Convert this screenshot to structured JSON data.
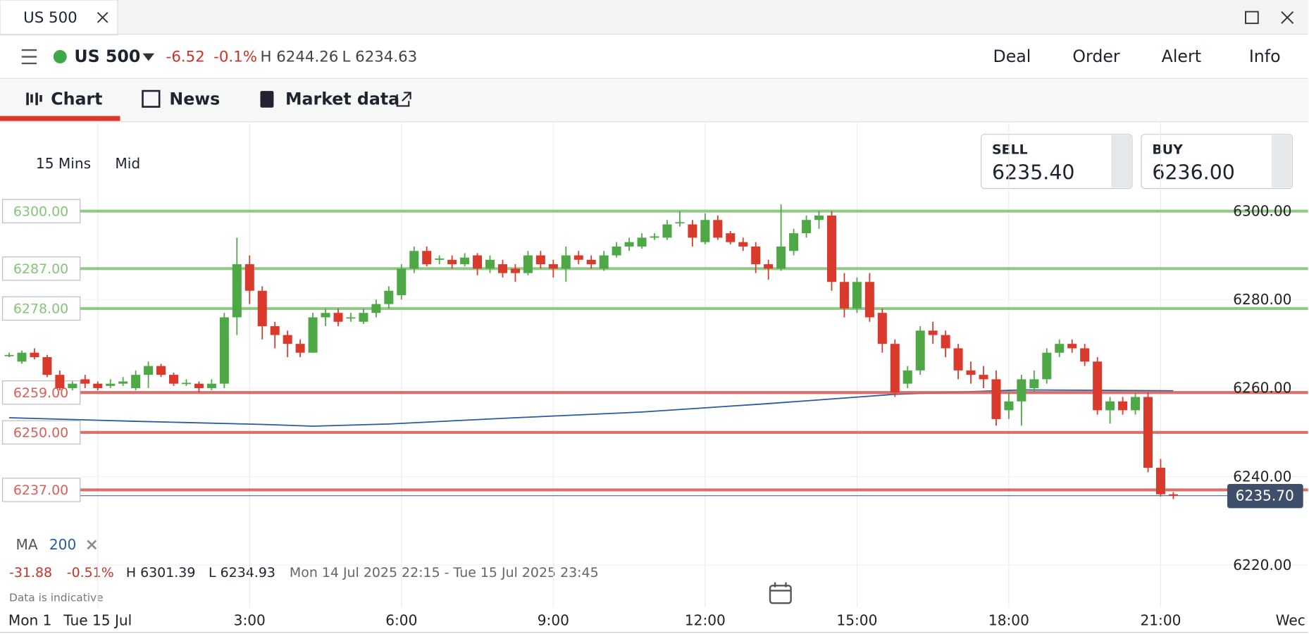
{
  "window": {
    "tab_title": "US 500"
  },
  "toolbar": {
    "instrument": "US 500",
    "change": "-6.52",
    "change_pct": "-0.1%",
    "high": "H 6244.26",
    "low": "L 6234.63",
    "menu": [
      "Deal",
      "Order",
      "Alert",
      "Info"
    ]
  },
  "tabs": [
    "Chart",
    "News",
    "Market data"
  ],
  "chart_data": {
    "type": "candlestick",
    "interval": "15 Mins",
    "price_type": "Mid",
    "sell": {
      "label": "SELL",
      "price": "6235.40"
    },
    "buy": {
      "label": "BUY",
      "price": "6236.00"
    },
    "up_color": "#4ea845",
    "down_color": "#d93a2b",
    "open": [
      6267.5,
      6266,
      6268,
      6267,
      6263,
      6260,
      6262,
      6261,
      6260.5,
      6261,
      6260,
      6263,
      6265,
      6263,
      6261,
      6261,
      6260,
      6261,
      6276,
      6288,
      6282,
      6274,
      6272,
      6270,
      6268,
      6276,
      6277,
      6275.8,
      6275,
      6277,
      6279,
      6281,
      6287,
      6291,
      6289,
      6289,
      6288,
      6290,
      6287,
      6288,
      6287,
      6286,
      6290,
      6288,
      6287,
      6290,
      6289,
      6287,
      6290,
      6292,
      6292,
      6294,
      6294,
      6297.3,
      6297,
      6293,
      6298,
      6295,
      6293,
      6292,
      6288,
      6287,
      6291,
      6295,
      6298,
      6299,
      6284,
      6278,
      6284,
      6277,
      6270,
      6261,
      6264,
      6273,
      6272,
      6269,
      6264,
      6263,
      6262,
      6255,
      6257,
      6260,
      6262,
      6268,
      6270,
      6269,
      6266,
      6255,
      6257,
      6255,
      6258,
      6242,
      6236
    ],
    "high": [
      6268,
      6268.5,
      6269,
      6267.5,
      6264,
      6261.5,
      6263,
      6261.5,
      6262,
      6262.5,
      6264,
      6266,
      6265.5,
      6263.5,
      6262,
      6261.5,
      6262,
      6277,
      6294,
      6290,
      6283,
      6275,
      6273,
      6271,
      6277,
      6278,
      6278,
      6277,
      6278,
      6280,
      6283,
      6288,
      6292,
      6292,
      6290,
      6290,
      6290.5,
      6290.5,
      6290,
      6289,
      6288,
      6291,
      6291,
      6289,
      6292,
      6291,
      6290,
      6291,
      6293,
      6294,
      6295,
      6295,
      6298,
      6300,
      6298,
      6299.5,
      6299,
      6295.5,
      6294,
      6293,
      6289,
      6301.5,
      6296,
      6299,
      6300,
      6300,
      6286,
      6285,
      6286,
      6278,
      6271,
      6265,
      6274,
      6275,
      6273,
      6270,
      6266,
      6265,
      6264,
      6259,
      6263,
      6264,
      6269,
      6271,
      6271,
      6270,
      6267,
      6258,
      6258,
      6259,
      6259,
      6244,
      6236.5
    ],
    "low": [
      6267,
      6265.5,
      6266.5,
      6262.5,
      6259.5,
      6259.5,
      6260,
      6259.5,
      6260,
      6260.5,
      6259.5,
      6260,
      6262.5,
      6260.5,
      6260.5,
      6259,
      6259.5,
      6260,
      6272,
      6279,
      6271,
      6269,
      6267,
      6267,
      6268,
      6274,
      6274,
      6275,
      6274.5,
      6276,
      6278,
      6280,
      6286,
      6287.5,
      6288,
      6287,
      6287.5,
      6285.5,
      6286,
      6285,
      6284,
      6285.5,
      6287,
      6285,
      6284,
      6288,
      6287,
      6286.5,
      6289.5,
      6291,
      6291.5,
      6293.5,
      6293.5,
      6296.5,
      6292,
      6292.5,
      6293.5,
      6292.5,
      6291,
      6286,
      6284.5,
      6286.5,
      6290,
      6294,
      6296,
      6282,
      6276,
      6277,
      6275,
      6268,
      6258,
      6260,
      6263,
      6270,
      6267,
      6262,
      6261,
      6260,
      6251.5,
      6253,
      6251.5,
      6259,
      6261,
      6267,
      6268,
      6265,
      6254,
      6252,
      6254,
      6254,
      6241,
      6235.5,
      6234.93
    ],
    "close": [
      6267.5,
      6268,
      6267,
      6263,
      6260,
      6261,
      6261,
      6260,
      6261,
      6261.5,
      6263,
      6265,
      6263,
      6261,
      6261.2,
      6260,
      6261,
      6276,
      6288,
      6282,
      6274,
      6272,
      6270,
      6268,
      6276,
      6277,
      6275,
      6276,
      6277,
      6279,
      6282,
      6287,
      6291,
      6288,
      6289.3,
      6288,
      6289.5,
      6287,
      6289,
      6286,
      6286,
      6290,
      6288,
      6287,
      6290,
      6289,
      6288,
      6290,
      6292,
      6293,
      6294,
      6294.3,
      6297,
      6297.5,
      6294,
      6298,
      6294,
      6293,
      6292,
      6288,
      6287,
      6292,
      6295,
      6298,
      6299,
      6284,
      6278,
      6284,
      6276,
      6270,
      6259,
      6264,
      6273,
      6272,
      6269,
      6264,
      6263,
      6262,
      6253,
      6257,
      6262,
      6262,
      6268,
      6270,
      6269,
      6266,
      6255,
      6257,
      6255,
      6258,
      6242,
      6236,
      6235.7
    ],
    "ylim": [
      6205,
      6320
    ],
    "yticks": [
      {
        "value": 6300,
        "label": "6300.00"
      },
      {
        "value": 6280,
        "label": "6280.00"
      },
      {
        "value": 6260,
        "label": "6260.00"
      },
      {
        "value": 6240,
        "label": "6240.00"
      },
      {
        "value": 6220,
        "label": "6220.00"
      }
    ],
    "xticks": [
      {
        "value": 7,
        "label": "Tue 15 Jul"
      },
      {
        "value": 19,
        "label": "3:00"
      },
      {
        "value": 31,
        "label": "6:00"
      },
      {
        "value": 43,
        "label": "9:00"
      },
      {
        "value": 55,
        "label": "12:00"
      },
      {
        "value": 67,
        "label": "15:00"
      },
      {
        "value": 79,
        "label": "18:00"
      },
      {
        "value": 91,
        "label": "21:00"
      }
    ],
    "x_edge_labels": [
      "Mon 1",
      "Wec"
    ],
    "levels": [
      {
        "value": 6300,
        "label": "6300.00",
        "color": "#86c47a"
      },
      {
        "value": 6287,
        "label": "6287.00",
        "color": "#86c47a"
      },
      {
        "value": 6278,
        "label": "6278.00",
        "color": "#86c47a"
      },
      {
        "value": 6259,
        "label": "6259.00",
        "color": "#d9605a"
      },
      {
        "value": 6250,
        "label": "6250.00",
        "color": "#d9605a"
      },
      {
        "value": 6237,
        "label": "6237.00",
        "color": "#d9605a"
      }
    ],
    "current": {
      "value": 6235.7,
      "label": "6235.70"
    },
    "ma": {
      "name": "MA",
      "period": 200,
      "color": "#2c5a9e",
      "x": [
        0,
        10,
        20,
        24,
        30,
        40,
        50,
        60,
        70,
        80,
        92
      ],
      "values": [
        6253.3,
        6252.5,
        6251.8,
        6251.4,
        6251.9,
        6253.3,
        6254.6,
        6256.5,
        6258.6,
        6259.6,
        6259.4
      ]
    },
    "stats": {
      "change": "-31.88",
      "change_pct": "-0.51%",
      "high": "H 6301.39",
      "low": "L 6234.93",
      "range": "Mon 14 Jul 2025 22:15 - Tue 15 Jul 2025 23:45"
    },
    "note": "Data is indicative"
  }
}
